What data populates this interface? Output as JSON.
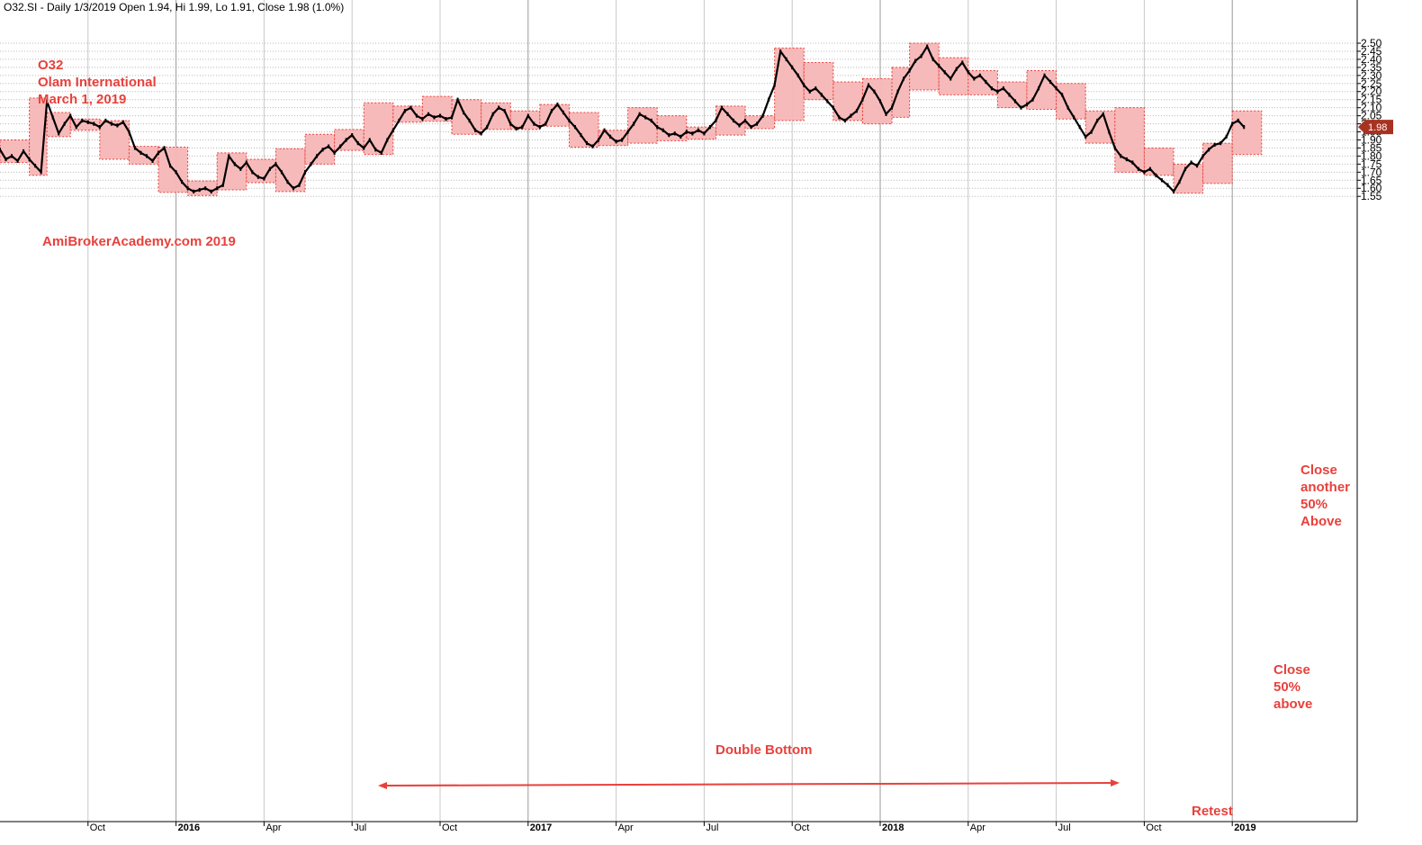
{
  "header": {
    "text": "O32.SI - Daily 1/3/2019 Open 1.94, Hi 1.99, Lo 1.91, Close 1.98 (1.0%)"
  },
  "colors": {
    "accent": "#e8413c",
    "box_fill": "#f7b6b6",
    "box_stroke": "#e8413c",
    "price": "#000000",
    "last_label_bg": "#a83220"
  },
  "chart_data": {
    "type": "line",
    "title": "O32.SI - Daily 1/3/2019 Open 1.94, Hi 1.99, Lo 1.91, Close 1.98 (1.0%)",
    "xlabel": "",
    "ylabel": "",
    "ylim": [
      1.53,
      2.52
    ],
    "y_ticks": [
      "1.55",
      "1.60",
      "1.65",
      "1.70",
      "1.75",
      "1.80",
      "1.85",
      "1.90",
      "1.95",
      "2.00",
      "2.05",
      "2.10",
      "2.15",
      "2.20",
      "2.25",
      "2.30",
      "2.35",
      "2.40",
      "2.45",
      "2.50"
    ],
    "x_range_months": [
      0,
      41
    ],
    "x_ticks": [
      {
        "label": "Oct",
        "month": 3,
        "year_marker": false
      },
      {
        "label": "2016",
        "month": 6,
        "year_marker": true
      },
      {
        "label": "Apr",
        "month": 9,
        "year_marker": false
      },
      {
        "label": "Jul",
        "month": 12,
        "year_marker": false
      },
      {
        "label": "Oct",
        "month": 15,
        "year_marker": false
      },
      {
        "label": "2017",
        "month": 18,
        "year_marker": true
      },
      {
        "label": "Apr",
        "month": 21,
        "year_marker": false
      },
      {
        "label": "Jul",
        "month": 24,
        "year_marker": false
      },
      {
        "label": "Oct",
        "month": 27,
        "year_marker": false
      },
      {
        "label": "2018",
        "month": 30,
        "year_marker": true
      },
      {
        "label": "Apr",
        "month": 33,
        "year_marker": false
      },
      {
        "label": "Jul",
        "month": 36,
        "year_marker": false
      },
      {
        "label": "Oct",
        "month": 39,
        "year_marker": false
      },
      {
        "label": "2019",
        "month": 42,
        "year_marker": true
      }
    ],
    "grid": true,
    "last_value": "1.98",
    "series": [
      {
        "values_xy": [
          [
            0.0,
            1.84
          ],
          [
            0.2,
            1.78
          ],
          [
            0.4,
            1.8
          ],
          [
            0.6,
            1.77
          ],
          [
            0.8,
            1.83
          ],
          [
            1.0,
            1.78
          ],
          [
            1.2,
            1.74
          ],
          [
            1.4,
            1.7
          ],
          [
            1.6,
            2.14
          ],
          [
            1.8,
            2.04
          ],
          [
            2.0,
            1.94
          ],
          [
            2.2,
            2.0
          ],
          [
            2.4,
            2.05
          ],
          [
            2.6,
            1.98
          ],
          [
            2.8,
            2.02
          ],
          [
            3.0,
            2.01
          ],
          [
            3.2,
            2.0
          ],
          [
            3.4,
            1.98
          ],
          [
            3.6,
            2.02
          ],
          [
            3.8,
            2.0
          ],
          [
            4.0,
            1.99
          ],
          [
            4.2,
            2.01
          ],
          [
            4.4,
            1.95
          ],
          [
            4.6,
            1.85
          ],
          [
            4.8,
            1.82
          ],
          [
            5.0,
            1.8
          ],
          [
            5.2,
            1.77
          ],
          [
            5.4,
            1.82
          ],
          [
            5.6,
            1.85
          ],
          [
            5.8,
            1.74
          ],
          [
            6.0,
            1.7
          ],
          [
            6.2,
            1.64
          ],
          [
            6.4,
            1.6
          ],
          [
            6.6,
            1.58
          ],
          [
            6.8,
            1.59
          ],
          [
            7.0,
            1.6
          ],
          [
            7.2,
            1.58
          ],
          [
            7.4,
            1.6
          ],
          [
            7.6,
            1.62
          ],
          [
            7.8,
            1.8
          ],
          [
            8.0,
            1.75
          ],
          [
            8.2,
            1.72
          ],
          [
            8.4,
            1.76
          ],
          [
            8.6,
            1.7
          ],
          [
            8.8,
            1.67
          ],
          [
            9.0,
            1.66
          ],
          [
            9.2,
            1.72
          ],
          [
            9.4,
            1.75
          ],
          [
            9.6,
            1.7
          ],
          [
            9.8,
            1.64
          ],
          [
            10.0,
            1.6
          ],
          [
            10.2,
            1.62
          ],
          [
            10.4,
            1.7
          ],
          [
            10.6,
            1.75
          ],
          [
            10.8,
            1.8
          ],
          [
            11.0,
            1.84
          ],
          [
            11.2,
            1.86
          ],
          [
            11.4,
            1.82
          ],
          [
            11.6,
            1.86
          ],
          [
            11.8,
            1.9
          ],
          [
            12.0,
            1.93
          ],
          [
            12.2,
            1.88
          ],
          [
            12.4,
            1.85
          ],
          [
            12.6,
            1.9
          ],
          [
            12.8,
            1.84
          ],
          [
            13.0,
            1.82
          ],
          [
            13.2,
            1.9
          ],
          [
            13.4,
            1.96
          ],
          [
            13.6,
            2.02
          ],
          [
            13.8,
            2.08
          ],
          [
            14.0,
            2.1
          ],
          [
            14.2,
            2.05
          ],
          [
            14.4,
            2.03
          ],
          [
            14.6,
            2.06
          ],
          [
            14.8,
            2.04
          ],
          [
            15.0,
            2.05
          ],
          [
            15.2,
            2.03
          ],
          [
            15.4,
            2.04
          ],
          [
            15.6,
            2.15
          ],
          [
            15.8,
            2.07
          ],
          [
            16.0,
            2.02
          ],
          [
            16.2,
            1.96
          ],
          [
            16.4,
            1.94
          ],
          [
            16.6,
            1.98
          ],
          [
            16.8,
            2.06
          ],
          [
            17.0,
            2.1
          ],
          [
            17.2,
            2.08
          ],
          [
            17.4,
            2.0
          ],
          [
            17.6,
            1.97
          ],
          [
            17.8,
            1.98
          ],
          [
            18.0,
            2.05
          ],
          [
            18.2,
            2.0
          ],
          [
            18.4,
            1.98
          ],
          [
            18.6,
            2.0
          ],
          [
            18.8,
            2.08
          ],
          [
            19.0,
            2.12
          ],
          [
            19.2,
            2.07
          ],
          [
            19.4,
            2.02
          ],
          [
            19.6,
            1.98
          ],
          [
            19.8,
            1.93
          ],
          [
            20.0,
            1.88
          ],
          [
            20.2,
            1.86
          ],
          [
            20.4,
            1.9
          ],
          [
            20.6,
            1.96
          ],
          [
            20.8,
            1.92
          ],
          [
            21.0,
            1.89
          ],
          [
            21.2,
            1.9
          ],
          [
            21.4,
            1.95
          ],
          [
            21.6,
            2.0
          ],
          [
            21.8,
            2.06
          ],
          [
            22.0,
            2.04
          ],
          [
            22.2,
            2.02
          ],
          [
            22.4,
            1.98
          ],
          [
            22.6,
            1.96
          ],
          [
            22.8,
            1.93
          ],
          [
            23.0,
            1.94
          ],
          [
            23.2,
            1.92
          ],
          [
            23.4,
            1.95
          ],
          [
            23.6,
            1.94
          ],
          [
            23.8,
            1.96
          ],
          [
            24.0,
            1.94
          ],
          [
            24.2,
            1.98
          ],
          [
            24.4,
            2.02
          ],
          [
            24.6,
            2.1
          ],
          [
            24.8,
            2.06
          ],
          [
            25.0,
            2.02
          ],
          [
            25.2,
            1.99
          ],
          [
            25.4,
            2.02
          ],
          [
            25.6,
            1.98
          ],
          [
            25.8,
            2.0
          ],
          [
            26.0,
            2.05
          ],
          [
            26.2,
            2.15
          ],
          [
            26.4,
            2.24
          ],
          [
            26.6,
            2.45
          ],
          [
            26.8,
            2.4
          ],
          [
            27.0,
            2.35
          ],
          [
            27.2,
            2.3
          ],
          [
            27.4,
            2.24
          ],
          [
            27.6,
            2.2
          ],
          [
            27.8,
            2.22
          ],
          [
            28.0,
            2.18
          ],
          [
            28.2,
            2.14
          ],
          [
            28.4,
            2.1
          ],
          [
            28.6,
            2.04
          ],
          [
            28.8,
            2.02
          ],
          [
            29.0,
            2.05
          ],
          [
            29.2,
            2.08
          ],
          [
            29.4,
            2.15
          ],
          [
            29.6,
            2.24
          ],
          [
            29.8,
            2.2
          ],
          [
            30.0,
            2.14
          ],
          [
            30.2,
            2.06
          ],
          [
            30.4,
            2.1
          ],
          [
            30.6,
            2.2
          ],
          [
            30.8,
            2.28
          ],
          [
            31.0,
            2.33
          ],
          [
            31.2,
            2.39
          ],
          [
            31.4,
            2.42
          ],
          [
            31.6,
            2.48
          ],
          [
            31.8,
            2.4
          ],
          [
            32.0,
            2.36
          ],
          [
            32.2,
            2.32
          ],
          [
            32.4,
            2.28
          ],
          [
            32.6,
            2.34
          ],
          [
            32.8,
            2.38
          ],
          [
            33.0,
            2.32
          ],
          [
            33.2,
            2.28
          ],
          [
            33.4,
            2.3
          ],
          [
            33.6,
            2.26
          ],
          [
            33.8,
            2.22
          ],
          [
            34.0,
            2.2
          ],
          [
            34.2,
            2.22
          ],
          [
            34.4,
            2.18
          ],
          [
            34.6,
            2.14
          ],
          [
            34.8,
            2.1
          ],
          [
            35.0,
            2.12
          ],
          [
            35.2,
            2.15
          ],
          [
            35.4,
            2.22
          ],
          [
            35.6,
            2.3
          ],
          [
            35.8,
            2.26
          ],
          [
            36.0,
            2.22
          ],
          [
            36.2,
            2.18
          ],
          [
            36.4,
            2.1
          ],
          [
            36.6,
            2.04
          ],
          [
            36.8,
            1.98
          ],
          [
            37.0,
            1.92
          ],
          [
            37.2,
            1.95
          ],
          [
            37.4,
            2.02
          ],
          [
            37.6,
            2.06
          ],
          [
            37.8,
            1.95
          ],
          [
            38.0,
            1.85
          ],
          [
            38.2,
            1.8
          ],
          [
            38.4,
            1.78
          ],
          [
            38.6,
            1.76
          ],
          [
            38.8,
            1.72
          ],
          [
            39.0,
            1.7
          ],
          [
            39.2,
            1.72
          ],
          [
            39.4,
            1.68
          ],
          [
            39.6,
            1.65
          ],
          [
            39.8,
            1.62
          ],
          [
            40.0,
            1.58
          ],
          [
            40.2,
            1.64
          ],
          [
            40.4,
            1.72
          ],
          [
            40.6,
            1.76
          ],
          [
            40.8,
            1.74
          ],
          [
            41.0,
            1.8
          ],
          [
            41.2,
            1.84
          ],
          [
            41.4,
            1.87
          ],
          [
            41.6,
            1.88
          ],
          [
            41.8,
            1.92
          ],
          [
            42.0,
            2.0
          ],
          [
            42.2,
            2.02
          ],
          [
            42.4,
            1.98
          ]
        ]
      }
    ],
    "boxes": [
      {
        "x0": 0.0,
        "x1": 1.0,
        "low": 1.76,
        "high": 1.9
      },
      {
        "x0": 1.0,
        "x1": 1.6,
        "low": 1.68,
        "high": 2.16
      },
      {
        "x0": 1.6,
        "x1": 2.4,
        "low": 1.92,
        "high": 2.07
      },
      {
        "x0": 2.4,
        "x1": 3.4,
        "low": 1.96,
        "high": 2.03
      },
      {
        "x0": 3.4,
        "x1": 4.4,
        "low": 1.78,
        "high": 2.02
      },
      {
        "x0": 4.4,
        "x1": 5.4,
        "low": 1.75,
        "high": 1.86
      },
      {
        "x0": 5.4,
        "x1": 6.4,
        "low": 1.575,
        "high": 1.855
      },
      {
        "x0": 6.4,
        "x1": 7.4,
        "low": 1.555,
        "high": 1.645
      },
      {
        "x0": 7.4,
        "x1": 8.4,
        "low": 1.59,
        "high": 1.82
      },
      {
        "x0": 8.4,
        "x1": 9.4,
        "low": 1.635,
        "high": 1.78
      },
      {
        "x0": 9.4,
        "x1": 10.4,
        "low": 1.58,
        "high": 1.845
      },
      {
        "x0": 10.4,
        "x1": 11.4,
        "low": 1.75,
        "high": 1.935
      },
      {
        "x0": 11.4,
        "x1": 12.4,
        "low": 1.835,
        "high": 1.965
      },
      {
        "x0": 12.4,
        "x1": 13.4,
        "low": 1.81,
        "high": 2.13
      },
      {
        "x0": 13.4,
        "x1": 14.4,
        "low": 2.01,
        "high": 2.11
      },
      {
        "x0": 14.4,
        "x1": 15.4,
        "low": 2.015,
        "high": 2.17
      },
      {
        "x0": 15.4,
        "x1": 16.4,
        "low": 1.935,
        "high": 2.15
      },
      {
        "x0": 16.4,
        "x1": 17.4,
        "low": 1.965,
        "high": 2.13
      },
      {
        "x0": 17.4,
        "x1": 18.4,
        "low": 1.965,
        "high": 2.08
      },
      {
        "x0": 18.4,
        "x1": 19.4,
        "low": 1.985,
        "high": 2.12
      },
      {
        "x0": 19.4,
        "x1": 20.4,
        "low": 1.855,
        "high": 2.07
      },
      {
        "x0": 20.4,
        "x1": 21.4,
        "low": 1.865,
        "high": 1.96
      },
      {
        "x0": 21.4,
        "x1": 22.4,
        "low": 1.88,
        "high": 2.1
      },
      {
        "x0": 22.4,
        "x1": 23.4,
        "low": 1.895,
        "high": 2.05
      },
      {
        "x0": 23.4,
        "x1": 24.4,
        "low": 1.905,
        "high": 1.98
      },
      {
        "x0": 24.4,
        "x1": 25.4,
        "low": 1.93,
        "high": 2.11
      },
      {
        "x0": 25.4,
        "x1": 26.4,
        "low": 1.97,
        "high": 2.05
      },
      {
        "x0": 26.4,
        "x1": 27.4,
        "low": 2.02,
        "high": 2.47
      },
      {
        "x0": 27.4,
        "x1": 28.4,
        "low": 2.15,
        "high": 2.38
      },
      {
        "x0": 28.4,
        "x1": 29.4,
        "low": 2.02,
        "high": 2.26
      },
      {
        "x0": 29.4,
        "x1": 30.4,
        "low": 2.0,
        "high": 2.28
      },
      {
        "x0": 30.4,
        "x1": 31.0,
        "low": 2.04,
        "high": 2.35
      },
      {
        "x0": 31.0,
        "x1": 32.0,
        "low": 2.21,
        "high": 2.5
      },
      {
        "x0": 32.0,
        "x1": 33.0,
        "low": 2.18,
        "high": 2.41
      },
      {
        "x0": 33.0,
        "x1": 34.0,
        "low": 2.18,
        "high": 2.33
      },
      {
        "x0": 34.0,
        "x1": 35.0,
        "low": 2.1,
        "high": 2.26
      },
      {
        "x0": 35.0,
        "x1": 36.0,
        "low": 2.09,
        "high": 2.33
      },
      {
        "x0": 36.0,
        "x1": 37.0,
        "low": 2.03,
        "high": 2.25
      },
      {
        "x0": 37.0,
        "x1": 38.0,
        "low": 1.88,
        "high": 2.08
      },
      {
        "x0": 38.0,
        "x1": 39.0,
        "low": 1.7,
        "high": 2.1
      },
      {
        "x0": 39.0,
        "x1": 40.0,
        "low": 1.68,
        "high": 1.85
      },
      {
        "x0": 40.0,
        "x1": 41.0,
        "low": 1.57,
        "high": 1.75
      },
      {
        "x0": 41.0,
        "x1": 42.0,
        "low": 1.63,
        "high": 1.88
      },
      {
        "x0": 42.0,
        "x1": 43.0,
        "low": 1.81,
        "high": 2.08
      }
    ],
    "annotations": {
      "title_lines": [
        "O32",
        "Olam International",
        "March 1, 2019"
      ],
      "watermark": "AmiBrokerAcademy.com  2019",
      "double_bottom": "Double Bottom",
      "retest": "Retest",
      "close_50_lines": [
        "Close",
        "50%",
        "above"
      ],
      "close_another_lines": [
        "Close",
        "another",
        "50%",
        "Above"
      ]
    }
  }
}
